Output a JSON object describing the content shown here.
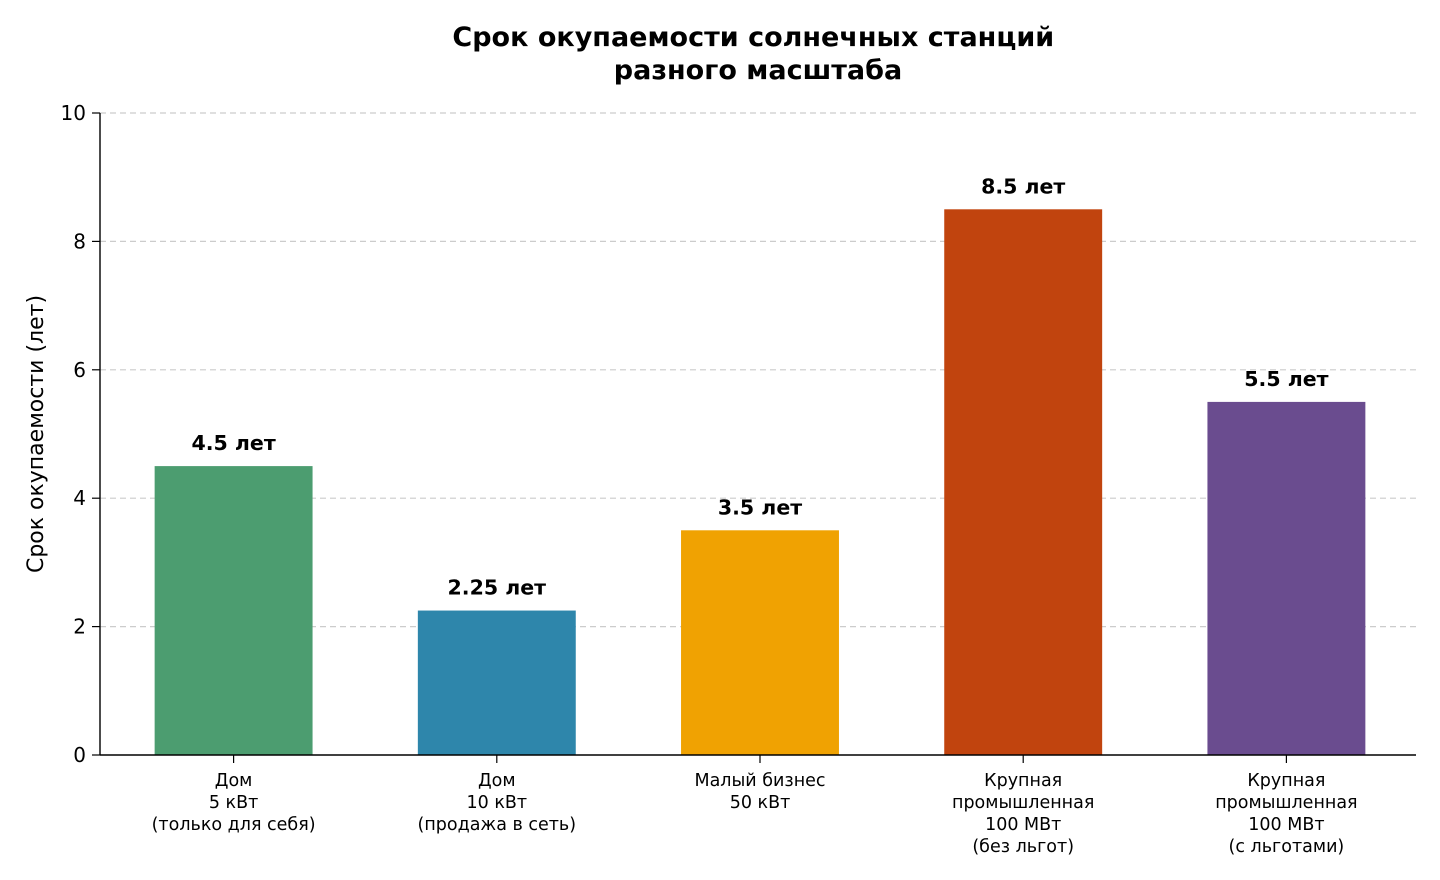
{
  "chart_data": {
    "type": "bar",
    "title": [
      "Срок окупаемости солнечных станций",
      "разного масштаба"
    ],
    "xlabel": "",
    "ylabel": "Срок окупаемости (лет)",
    "ylim": [
      0,
      10
    ],
    "yticks": [
      0,
      2,
      4,
      6,
      8,
      10
    ],
    "grid": "y-dashed",
    "categories": [
      [
        "Дом",
        "5 кВт",
        "(только для себя)"
      ],
      [
        "Дом",
        "10 кВт",
        "(продажа в сеть)"
      ],
      [
        "Малый бизнес",
        "50 кВт"
      ],
      [
        "Крупная",
        "промышленная",
        "100 МВт",
        "(без льгот)"
      ],
      [
        "Крупная",
        "промышленная",
        "100 МВт",
        "(с льготами)"
      ]
    ],
    "values": [
      4.5,
      2.25,
      3.5,
      8.5,
      5.5
    ],
    "data_labels": [
      "4.5 лет",
      "2.25 лет",
      "3.5 лет",
      "8.5 лет",
      "5.5 лет"
    ],
    "colors": [
      "#4c9d70",
      "#2e86ab",
      "#f0a202",
      "#c1440e",
      "#6a4c8f"
    ]
  }
}
